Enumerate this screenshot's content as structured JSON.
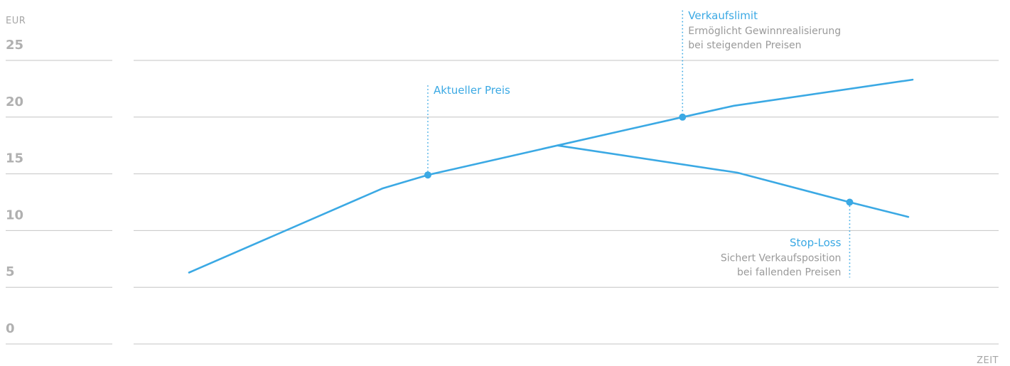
{
  "colors": {
    "series": "#3ba9e4",
    "grid": "#c4c4c4",
    "tick": "#b0b0b0",
    "text_secondary": "#9a9a9a"
  },
  "chart_data": {
    "type": "line",
    "yunit": "EUR",
    "xlabel": "ZEIT",
    "ylim": [
      0,
      25
    ],
    "xlim": [
      0,
      100
    ],
    "yticks": [
      0,
      5,
      10,
      15,
      20,
      25
    ],
    "grid": true,
    "series": [
      {
        "points": [
          [
            0,
            6.3
          ],
          [
            26.7,
            13.7
          ],
          [
            33,
            14.9
          ],
          [
            50.9,
            17.5
          ],
          [
            68.2,
            20
          ],
          [
            75.3,
            21
          ],
          [
            100,
            23.3
          ]
        ]
      },
      {
        "points": [
          [
            50.9,
            17.5
          ],
          [
            75.8,
            15.1
          ],
          [
            91.3,
            12.5
          ],
          [
            99.4,
            11.2
          ]
        ]
      }
    ],
    "annotations": [
      {
        "label": "Aktueller Preis",
        "x": 33,
        "y": 14.9,
        "side": "right"
      },
      {
        "label": "Verkaufslimit",
        "description": [
          "Ermöglicht Gewinnrealisierung",
          "bei steigenden Preisen"
        ],
        "x": 68.2,
        "y": 20,
        "side": "right"
      },
      {
        "label": "Stop-Loss",
        "description": [
          "Sichert Verkaufsposition",
          "bei fallenden Preisen"
        ],
        "x": 91.3,
        "y": 12.5,
        "side": "left"
      }
    ]
  }
}
